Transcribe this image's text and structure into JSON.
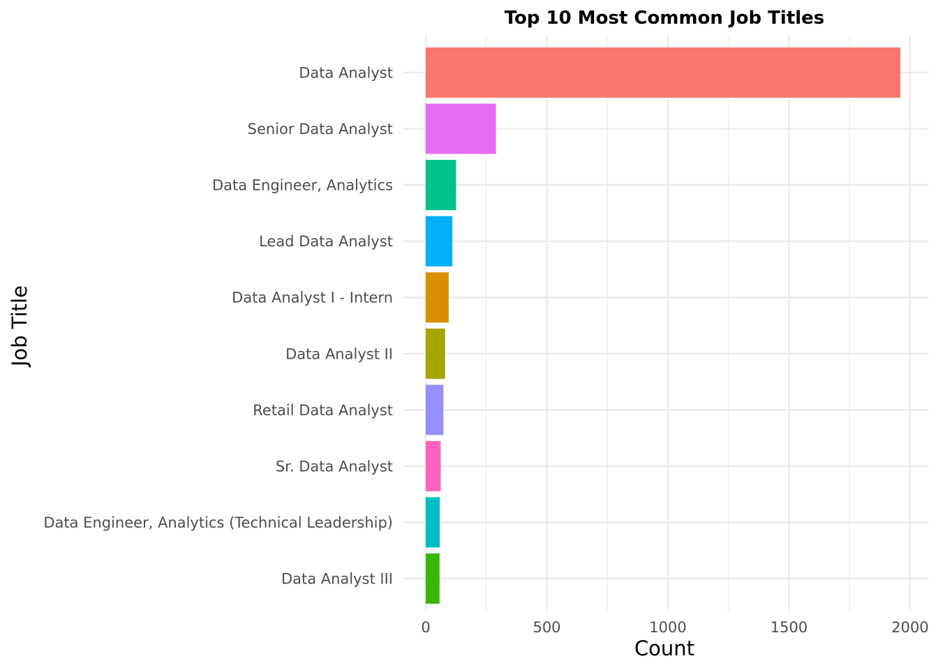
{
  "chart_data": {
    "type": "bar",
    "orientation": "horizontal",
    "title": "Top 10 Most Common Job Titles",
    "xlabel": "Count",
    "ylabel": "Job Title",
    "xlim": [
      0,
      2000
    ],
    "x_ticks": [
      0,
      500,
      1000,
      1500,
      2000
    ],
    "grid": true,
    "legend": "none",
    "categories": [
      "Data Analyst",
      "Senior Data Analyst",
      "Data Engineer, Analytics",
      "Lead Data Analyst",
      "Data Analyst I - Intern",
      "Data Analyst II",
      "Retail Data Analyst",
      "Sr. Data Analyst",
      "Data Engineer, Analytics (Technical Leadership)",
      "Data Analyst III"
    ],
    "values": [
      1960,
      290,
      125,
      110,
      95,
      80,
      73,
      62,
      58,
      57
    ],
    "colors": [
      "#F8766D",
      "#E76BF3",
      "#00C08B",
      "#00B0F6",
      "#D89000",
      "#A3A500",
      "#9590FF",
      "#FF62BC",
      "#00BFC4",
      "#39B600"
    ]
  }
}
